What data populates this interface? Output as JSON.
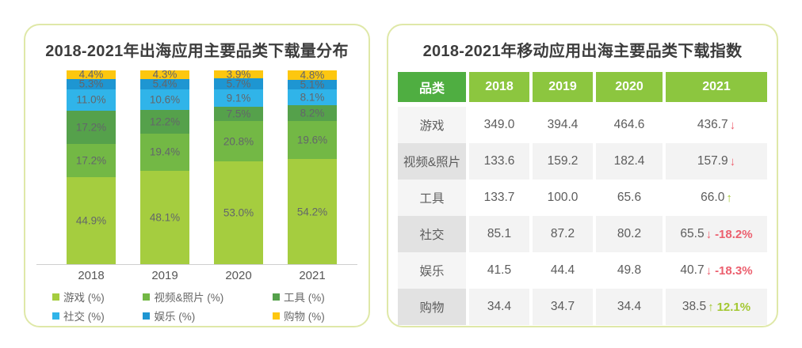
{
  "colors": {
    "panel_border": "#dfe8a8",
    "header_first_bg": "#4fae41",
    "header_bg": "#8cc63f",
    "trend_up": "#a3c832",
    "trend_down": "#ec5f6e",
    "axis_line": "#cfcfcf"
  },
  "chart_data": [
    {
      "type": "bar",
      "subtype": "stacked-percent",
      "title": "2018-2021年出海应用主要品类下载量分布",
      "categories": [
        "2018",
        "2019",
        "2020",
        "2021"
      ],
      "series": [
        {
          "name": "游戏 (%)",
          "color": "#a5cd3f",
          "values": [
            44.9,
            48.1,
            53.0,
            54.2
          ]
        },
        {
          "name": "视频&照片 (%)",
          "color": "#73b845",
          "values": [
            17.2,
            19.4,
            20.8,
            19.6
          ]
        },
        {
          "name": "工具 (%)",
          "color": "#55a14b",
          "values": [
            17.2,
            12.2,
            7.5,
            8.2
          ]
        },
        {
          "name": "社交 (%)",
          "color": "#30b4e9",
          "values": [
            11.0,
            10.6,
            9.1,
            8.1
          ]
        },
        {
          "name": "娱乐 (%)",
          "color": "#1e96d2",
          "values": [
            5.3,
            5.4,
            5.7,
            5.1
          ]
        },
        {
          "name": "购物 (%)",
          "color": "#fdc70f",
          "values": [
            4.4,
            4.3,
            3.9,
            4.8
          ]
        }
      ],
      "ylim": [
        0,
        100
      ],
      "grid": false,
      "legend_position": "bottom"
    },
    {
      "type": "table",
      "title": "2018-2021年移动应用出海主要品类下载指数",
      "columns": [
        "品类",
        "2018",
        "2019",
        "2020",
        "2021"
      ],
      "rows": [
        {
          "label": "游戏",
          "values": [
            "349.0",
            "394.4",
            "464.6"
          ],
          "y2021": "436.7",
          "trend": "down",
          "change": ""
        },
        {
          "label": "视频&照片",
          "values": [
            "133.6",
            "159.2",
            "182.4"
          ],
          "y2021": "157.9",
          "trend": "down",
          "change": ""
        },
        {
          "label": "工具",
          "values": [
            "133.7",
            "100.0",
            "65.6"
          ],
          "y2021": "66.0",
          "trend": "up",
          "change": ""
        },
        {
          "label": "社交",
          "values": [
            "85.1",
            "87.2",
            "80.2"
          ],
          "y2021": "65.5",
          "trend": "down",
          "change": "-18.2%"
        },
        {
          "label": "娱乐",
          "values": [
            "41.5",
            "44.4",
            "49.8"
          ],
          "y2021": "40.7",
          "trend": "down",
          "change": "-18.3%"
        },
        {
          "label": "购物",
          "values": [
            "34.4",
            "34.7",
            "34.4"
          ],
          "y2021": "38.5",
          "trend": "up",
          "change": "12.1%"
        }
      ]
    }
  ]
}
